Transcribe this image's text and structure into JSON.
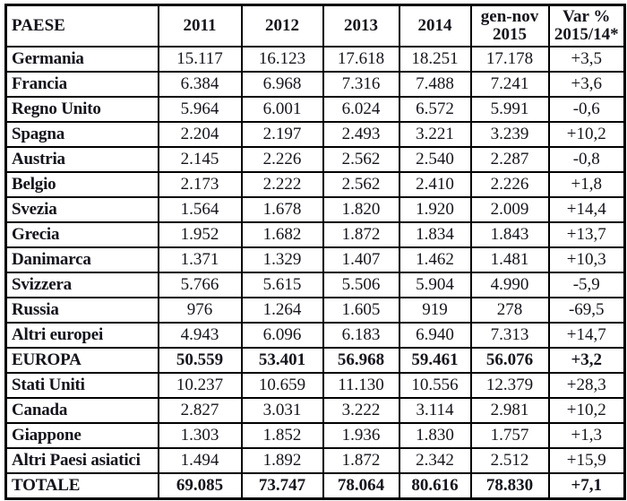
{
  "colors": {
    "background": "#ffffff",
    "border": "#000000",
    "text": "#14141c"
  },
  "table": {
    "columns": [
      "PAESE",
      "2011",
      "2012",
      "2013",
      "2014",
      "gen-nov 2015",
      "Var % 2015/14*"
    ],
    "rows": [
      {
        "country": "Germania",
        "values": [
          "15.117",
          "16.123",
          "17.618",
          "18.251",
          "17.178",
          "+3,5"
        ],
        "bold": false
      },
      {
        "country": "Francia",
        "values": [
          "6.384",
          "6.968",
          "7.316",
          "7.488",
          "7.241",
          "+3,6"
        ],
        "bold": false
      },
      {
        "country": "Regno Unito",
        "values": [
          "5.964",
          "6.001",
          "6.024",
          "6.572",
          "5.991",
          "-0,6"
        ],
        "bold": false
      },
      {
        "country": "Spagna",
        "values": [
          "2.204",
          "2.197",
          "2.493",
          "3.221",
          "3.239",
          "+10,2"
        ],
        "bold": false
      },
      {
        "country": "Austria",
        "values": [
          "2.145",
          "2.226",
          "2.562",
          "2.540",
          "2.287",
          "-0,8"
        ],
        "bold": false
      },
      {
        "country": "Belgio",
        "values": [
          "2.173",
          "2.222",
          "2.562",
          "2.410",
          "2.226",
          "+1,8"
        ],
        "bold": false
      },
      {
        "country": "Svezia",
        "values": [
          "1.564",
          "1.678",
          "1.820",
          "1.920",
          "2.009",
          "+14,4"
        ],
        "bold": false
      },
      {
        "country": "Grecia",
        "values": [
          "1.952",
          "1.682",
          "1.872",
          "1.834",
          "1.843",
          "+13,7"
        ],
        "bold": false
      },
      {
        "country": "Danimarca",
        "values": [
          "1.371",
          "1.329",
          "1.407",
          "1.462",
          "1.481",
          "+10,3"
        ],
        "bold": false
      },
      {
        "country": "Svizzera",
        "values": [
          "5.766",
          "5.615",
          "5.506",
          "5.904",
          "4.990",
          "-5,9"
        ],
        "bold": false
      },
      {
        "country": "Russia",
        "values": [
          "976",
          "1.264",
          "1.605",
          "919",
          "278",
          "-69,5"
        ],
        "bold": false
      },
      {
        "country": "Altri europei",
        "values": [
          "4.943",
          "6.096",
          "6.183",
          "6.940",
          "7.313",
          "+14,7"
        ],
        "bold": false
      },
      {
        "country": "EUROPA",
        "values": [
          "50.559",
          "53.401",
          "56.968",
          "59.461",
          "56.076",
          "+3,2"
        ],
        "bold": true
      },
      {
        "country": "Stati Uniti",
        "values": [
          "10.237",
          "10.659",
          "11.130",
          "10.556",
          "12.379",
          "+28,3"
        ],
        "bold": false
      },
      {
        "country": "Canada",
        "values": [
          "2.827",
          "3.031",
          "3.222",
          "3.114",
          "2.981",
          "+10,2"
        ],
        "bold": false
      },
      {
        "country": "Giappone",
        "values": [
          "1.303",
          "1.852",
          "1.936",
          "1.830",
          "1.757",
          "+1,3"
        ],
        "bold": false
      },
      {
        "country": "Altri Paesi asiatici",
        "values": [
          "1.494",
          "1.892",
          "1.872",
          "2.342",
          "2.512",
          "+15,9"
        ],
        "bold": false
      },
      {
        "country": "TOTALE",
        "values": [
          "69.085",
          "73.747",
          "78.064",
          "80.616",
          "78.830",
          "+7,1"
        ],
        "bold": true
      }
    ]
  }
}
